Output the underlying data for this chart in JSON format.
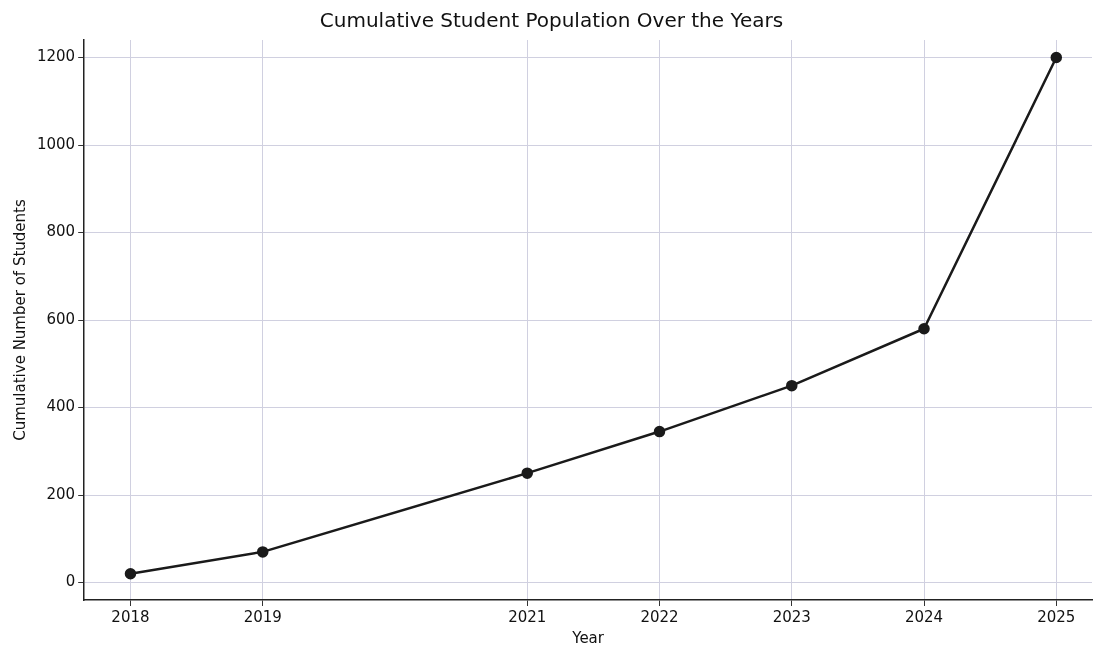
{
  "chart_data": {
    "type": "line",
    "title": "Cumulative Student Population Over the Years",
    "xlabel": "Year",
    "ylabel": "Cumulative Number of Students",
    "x": [
      2018,
      2019,
      2021,
      2022,
      2023,
      2024,
      2025
    ],
    "series": [
      {
        "color": "#1a1a1a",
        "values": [
          20,
          70,
          250,
          345,
          450,
          580,
          1200
        ]
      }
    ],
    "xlim": [
      2017.65,
      2025.27
    ],
    "xticks": [
      2018,
      2019,
      2021,
      2022,
      2023,
      2024,
      2025
    ],
    "ylim": [
      -40,
      1240
    ],
    "yticks": [
      0,
      200,
      400,
      600,
      800,
      1000,
      1200
    ],
    "grid": true,
    "marker": "circle",
    "line_style": "solid"
  }
}
